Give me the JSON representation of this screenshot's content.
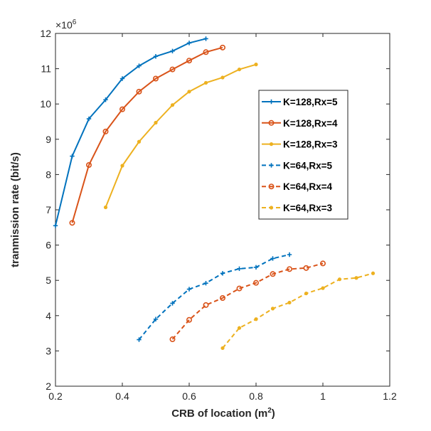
{
  "chart_data": {
    "type": "line",
    "title": "",
    "xlabel": "CRB of location (m",
    "xlabel_sup": "2",
    "xlabel_suffix": ")",
    "ylabel": "tranmission rate (bit/s)",
    "y_multiplier_base": "×10",
    "y_multiplier_exp": "6",
    "xlim": [
      0.2,
      1.2
    ],
    "ylim": [
      2,
      12
    ],
    "xticks": [
      "0.2",
      "0.4",
      "0.6",
      "0.8",
      "1",
      "1.2"
    ],
    "yticks": [
      "2",
      "3",
      "4",
      "5",
      "6",
      "7",
      "8",
      "9",
      "10",
      "11",
      "12"
    ],
    "grid": false,
    "legend_position": "right",
    "series": [
      {
        "name": "K=128,Rx=5",
        "color": "#0072BD",
        "style": "solid",
        "marker": "plus",
        "x": [
          0.2,
          0.25,
          0.3,
          0.35,
          0.4,
          0.45,
          0.5,
          0.55,
          0.6,
          0.65
        ],
        "y": [
          6.55,
          8.52,
          9.58,
          10.12,
          10.72,
          11.08,
          11.35,
          11.5,
          11.73,
          11.85
        ]
      },
      {
        "name": "K=128,Rx=4",
        "color": "#D95319",
        "style": "solid",
        "marker": "circle",
        "x": [
          0.25,
          0.3,
          0.35,
          0.4,
          0.45,
          0.5,
          0.55,
          0.6,
          0.65,
          0.7
        ],
        "y": [
          6.63,
          8.27,
          9.22,
          9.85,
          10.35,
          10.72,
          10.98,
          11.23,
          11.47,
          11.6
        ]
      },
      {
        "name": "K=128,Rx=3",
        "color": "#EDB120",
        "style": "solid",
        "marker": "dot",
        "x": [
          0.35,
          0.4,
          0.45,
          0.5,
          0.55,
          0.6,
          0.65,
          0.7,
          0.75,
          0.8
        ],
        "y": [
          7.07,
          8.25,
          8.93,
          9.47,
          9.97,
          10.35,
          10.6,
          10.75,
          10.98,
          11.12
        ]
      },
      {
        "name": "K=64,Rx=5",
        "color": "#0072BD",
        "style": "dashed",
        "marker": "plus",
        "x": [
          0.45,
          0.5,
          0.55,
          0.6,
          0.65,
          0.7,
          0.75,
          0.8,
          0.85,
          0.9
        ],
        "y": [
          3.32,
          3.9,
          4.35,
          4.75,
          4.92,
          5.2,
          5.33,
          5.37,
          5.62,
          5.73
        ]
      },
      {
        "name": "K=64,Rx=4",
        "color": "#D95319",
        "style": "dashed",
        "marker": "circle",
        "x": [
          0.55,
          0.6,
          0.65,
          0.7,
          0.75,
          0.8,
          0.85,
          0.9,
          0.95,
          1.0
        ],
        "y": [
          3.33,
          3.88,
          4.3,
          4.5,
          4.77,
          4.93,
          5.18,
          5.32,
          5.35,
          5.48
        ]
      },
      {
        "name": "K=64,Rx=3",
        "color": "#EDB120",
        "style": "dashed",
        "marker": "dot",
        "x": [
          0.7,
          0.75,
          0.8,
          0.85,
          0.9,
          0.95,
          1.0,
          1.05,
          1.1,
          1.15
        ],
        "y": [
          3.08,
          3.65,
          3.9,
          4.2,
          4.37,
          4.63,
          4.78,
          5.03,
          5.07,
          5.2
        ]
      }
    ]
  }
}
